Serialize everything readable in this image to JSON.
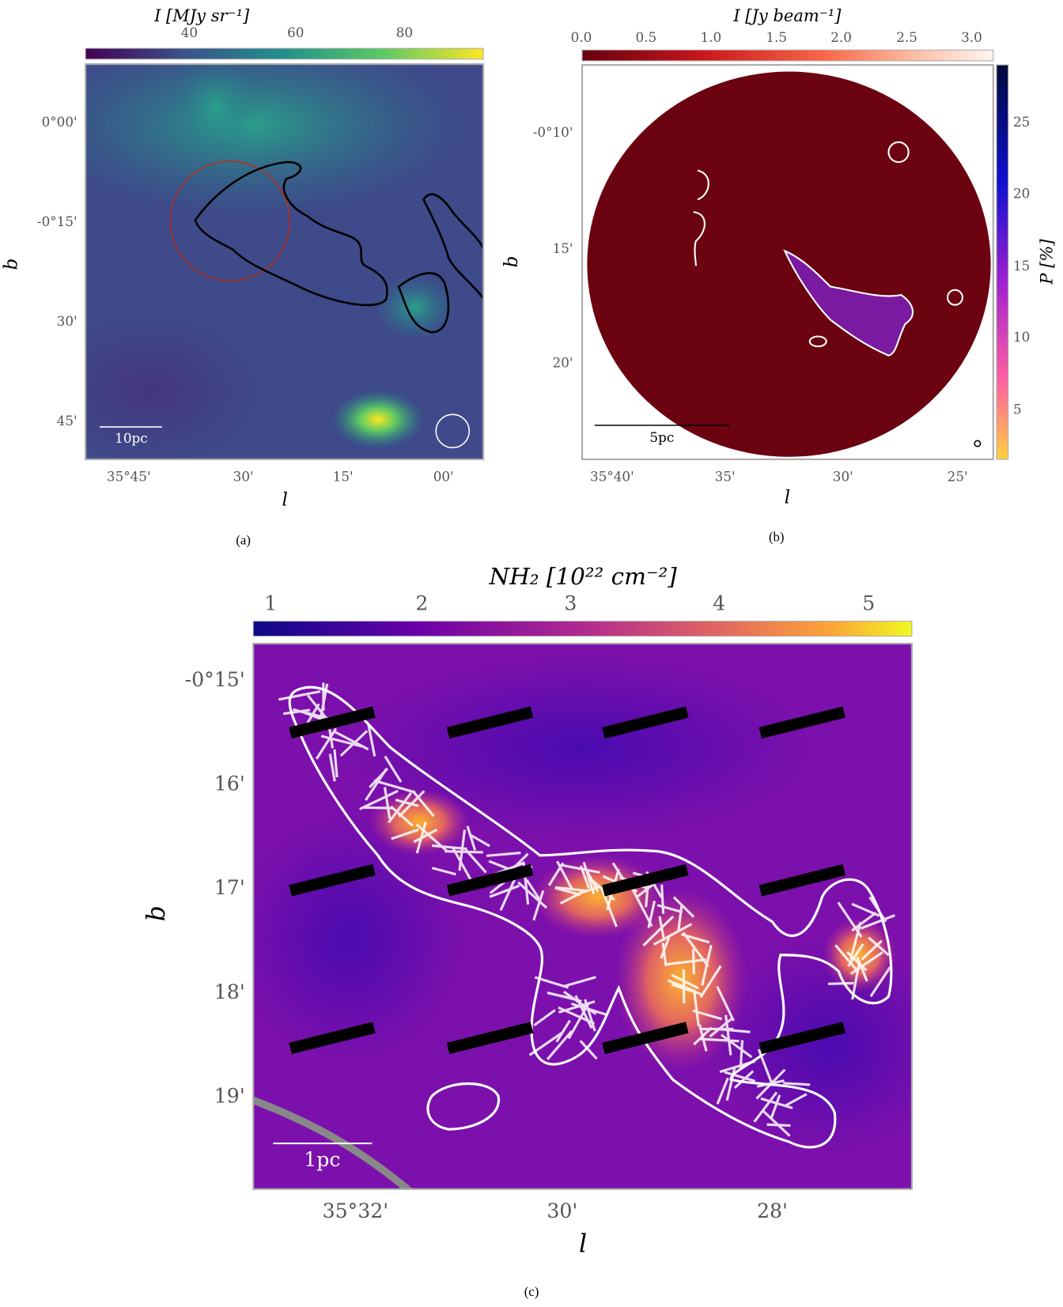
{
  "panels": [
    {
      "caption": "(a)",
      "colorbar": {
        "label": "I [MJy sr⁻¹]",
        "ticks": [
          "40",
          "60",
          "80"
        ]
      },
      "xticks": [
        "35°45'",
        "30'",
        "15'",
        "00'"
      ],
      "yticks": [
        "0°00'",
        "-0°15'",
        "30'",
        "45'"
      ],
      "xlabel": "l",
      "ylabel": "b",
      "scalebar": "10pc"
    },
    {
      "caption": "(b)",
      "colorbar": {
        "label": "I [Jy beam⁻¹]",
        "ticks": [
          "0.0",
          "0.5",
          "1.0",
          "1.5",
          "2.0",
          "2.5",
          "3.0"
        ]
      },
      "colorbar2": {
        "label": "P [%]",
        "ticks": [
          "25",
          "20",
          "15",
          "10",
          "5"
        ]
      },
      "xticks": [
        "35°40'",
        "35'",
        "30'",
        "25'"
      ],
      "yticks": [
        "-0°10'",
        "15'",
        "20'"
      ],
      "xlabel": "l",
      "ylabel": "b",
      "scalebar": "5pc"
    },
    {
      "caption": "(c)",
      "colorbar": {
        "label": "NH₂ [10²² cm⁻²]",
        "ticks": [
          "1",
          "2",
          "3",
          "4",
          "5"
        ]
      },
      "xticks": [
        "35°32'",
        "30'",
        "28'"
      ],
      "yticks": [
        "-0°15'",
        "16'",
        "17'",
        "18'",
        "19'"
      ],
      "xlabel": "l",
      "ylabel": "b",
      "scalebar": "1pc"
    }
  ]
}
